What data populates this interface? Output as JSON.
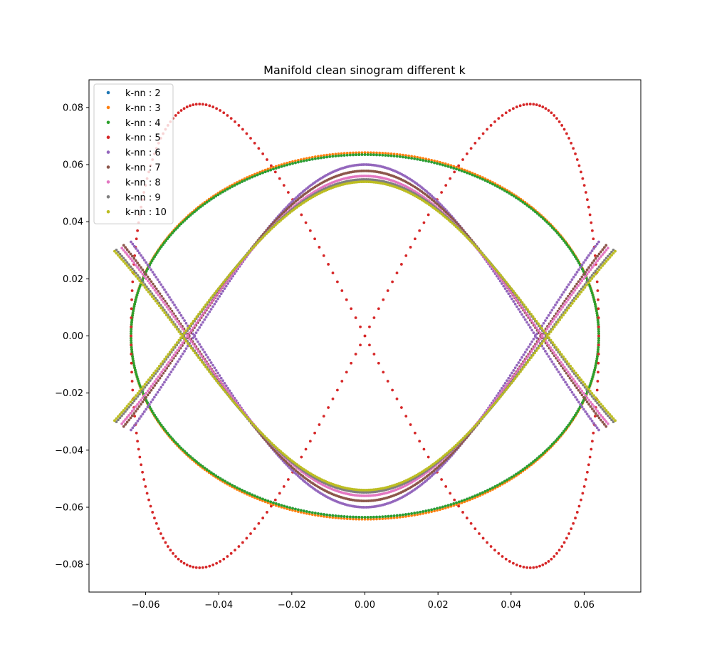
{
  "chart_data": {
    "type": "scatter",
    "title": "Manifold clean sinogram different k",
    "xlabel": "",
    "ylabel": "",
    "xlim": [
      -0.0755,
      0.0755
    ],
    "ylim": [
      -0.0897,
      0.0897
    ],
    "xticks": [
      -0.06,
      -0.04,
      -0.02,
      0.0,
      0.02,
      0.04,
      0.06
    ],
    "xtick_labels": [
      "−0.06",
      "−0.04",
      "−0.02",
      "0.00",
      "0.02",
      "0.04",
      "0.06"
    ],
    "yticks": [
      -0.08,
      -0.06,
      -0.04,
      -0.02,
      0.0,
      0.02,
      0.04,
      0.06,
      0.08
    ],
    "ytick_labels": [
      "−0.08",
      "−0.06",
      "−0.04",
      "−0.02",
      "0.00",
      "0.02",
      "0.04",
      "0.06",
      "0.08"
    ],
    "grid": false,
    "legend_position": "top-left",
    "series": [
      {
        "name": "k-nn : 2",
        "color": "#1f77b4",
        "shape": "ellipse",
        "params": {
          "a": 0.064,
          "b": 0.0635
        }
      },
      {
        "name": "k-nn : 3",
        "color": "#ff7f0e",
        "shape": "ellipse",
        "params": {
          "a": 0.064,
          "b": 0.0642
        }
      },
      {
        "name": "k-nn : 4",
        "color": "#2ca02c",
        "shape": "ellipse",
        "params": {
          "a": 0.064,
          "b": 0.0635
        }
      },
      {
        "name": "k-nn : 5",
        "color": "#d62728",
        "shape": "lemniscate",
        "params": {
          "a": 0.064,
          "b": 0.0812
        }
      },
      {
        "name": "k-nn : 6",
        "color": "#9467bd",
        "shape": "x-curve",
        "params": {
          "a": 0.064,
          "b": 0.06,
          "ymin": -0.062,
          "ymax": 0.061
        }
      },
      {
        "name": "k-nn : 7",
        "color": "#8c564b",
        "shape": "x-curve",
        "params": {
          "a": 0.066,
          "b": 0.0578,
          "ymin": -0.061,
          "ymax": 0.06
        }
      },
      {
        "name": "k-nn : 8",
        "color": "#e377c2",
        "shape": "x-curve",
        "params": {
          "a": 0.0665,
          "b": -0.056,
          "ymin": -0.061,
          "ymax": 0.062
        }
      },
      {
        "name": "k-nn : 9",
        "color": "#7f7f7f",
        "shape": "x-curve",
        "params": {
          "a": 0.068,
          "b": -0.0548,
          "ymin": -0.061,
          "ymax": 0.061
        }
      },
      {
        "name": "k-nn : 10",
        "color": "#bcbd22",
        "shape": "x-curve",
        "params": {
          "a": 0.0685,
          "b": 0.054,
          "ymin": -0.061,
          "ymax": 0.055
        }
      }
    ]
  }
}
